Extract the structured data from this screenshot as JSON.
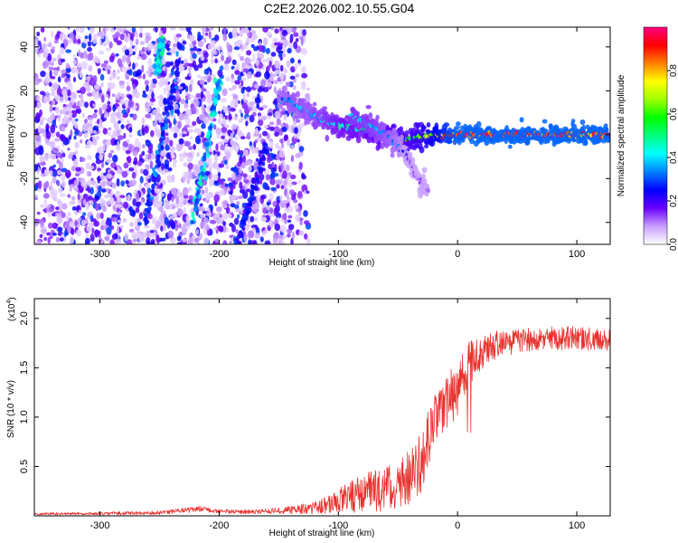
{
  "title": "C2E2.2026.002.10.55.G04",
  "chart_data": [
    {
      "type": "heatmap",
      "xlabel": "Height of straight line (km)",
      "ylabel": "Frequency (Hz)",
      "xlim": [
        -355,
        128
      ],
      "ylim": [
        -50,
        49
      ],
      "xticks": [
        -300,
        -200,
        -100,
        0,
        100
      ],
      "yticks": [
        -40,
        -20,
        0,
        20,
        40
      ],
      "colorbar": {
        "label": "Normalized spectral amplitude",
        "range": [
          0,
          1
        ],
        "ticks": [
          0.0,
          0.2,
          0.4,
          0.6,
          0.8
        ],
        "colors": [
          "#ffffff",
          "#c8a0ff",
          "#6a00ff",
          "#0000ff",
          "#0080ff",
          "#00ffff",
          "#00ff80",
          "#00ff00",
          "#a0ff00",
          "#ffff00",
          "#ff8000",
          "#ff0000",
          "#ff0080"
        ]
      },
      "features": [
        {
          "kind": "noise-streak",
          "x": [
            -262,
            -232
          ],
          "y": [
            -40,
            40
          ],
          "amplitude": 0.3
        },
        {
          "kind": "noise-streak",
          "x": [
            -252,
            -248
          ],
          "y": [
            28,
            44
          ],
          "amplitude": 0.45
        },
        {
          "kind": "noise-streak",
          "x": [
            -222,
            -198
          ],
          "y": [
            -40,
            30
          ],
          "amplitude": 0.4
        },
        {
          "kind": "noise-streak",
          "x": [
            -185,
            -160
          ],
          "y": [
            -50,
            -5
          ],
          "amplitude": 0.25
        },
        {
          "kind": "signal-track",
          "x": [
            -150,
            -140,
            -125,
            -110,
            -95,
            -80,
            -70,
            -60,
            -50,
            -40,
            -30,
            -20,
            0,
            20,
            60,
            128
          ],
          "y": [
            17,
            15,
            10,
            6,
            4,
            2,
            1,
            0,
            -1,
            -2,
            -1,
            0,
            0,
            0,
            0,
            0
          ],
          "amplitude": [
            0.3,
            0.35,
            0.35,
            0.4,
            0.45,
            0.45,
            0.5,
            0.5,
            0.55,
            0.55,
            0.6,
            0.7,
            0.9,
            0.9,
            0.9,
            0.9
          ]
        },
        {
          "kind": "signal-track",
          "x": [
            -90,
            -75,
            -60,
            -50,
            -45,
            -40,
            -35,
            -30,
            -25
          ],
          "y": [
            8,
            5,
            0,
            -5,
            -8,
            -12,
            -18,
            -22,
            -26
          ],
          "amplitude": [
            0.4,
            0.4,
            0.35,
            0.3,
            0.25,
            0.2,
            0.15,
            0.12,
            0.1
          ]
        }
      ]
    },
    {
      "type": "line",
      "xlabel": "Height of straight line (km)",
      "ylabel": "SNR (10 * v/v)",
      "y_multiplier": "(x10",
      "y_multiplier_exp": "4",
      "y_multiplier_close": ")",
      "xlim": [
        -355,
        128
      ],
      "ylim": [
        0,
        2.2
      ],
      "xticks": [
        -300,
        -200,
        -100,
        0,
        100
      ],
      "yticks": [
        0.5,
        1.0,
        1.5,
        2.0
      ],
      "color": "#e8322e",
      "series": [
        {
          "x": [
            -355,
            -300,
            -250,
            -215,
            -205,
            -180,
            -150,
            -120,
            -100,
            -90,
            -80,
            -70,
            -60,
            -50,
            -40,
            -30,
            -25,
            -20,
            -10,
            0,
            5,
            10,
            20,
            30,
            40,
            60,
            80,
            100,
            128
          ],
          "mean": [
            0.02,
            0.025,
            0.03,
            0.07,
            0.05,
            0.04,
            0.05,
            0.08,
            0.15,
            0.2,
            0.25,
            0.25,
            0.28,
            0.32,
            0.4,
            0.55,
            0.8,
            0.95,
            1.1,
            1.3,
            1.45,
            1.55,
            1.65,
            1.72,
            1.75,
            1.78,
            1.8,
            1.8,
            1.78
          ],
          "spread": [
            0.01,
            0.015,
            0.02,
            0.03,
            0.02,
            0.02,
            0.03,
            0.06,
            0.12,
            0.18,
            0.2,
            0.22,
            0.22,
            0.25,
            0.28,
            0.32,
            0.3,
            0.28,
            0.3,
            0.3,
            0.25,
            0.22,
            0.18,
            0.15,
            0.13,
            0.12,
            0.12,
            0.12,
            0.12
          ]
        }
      ]
    }
  ]
}
